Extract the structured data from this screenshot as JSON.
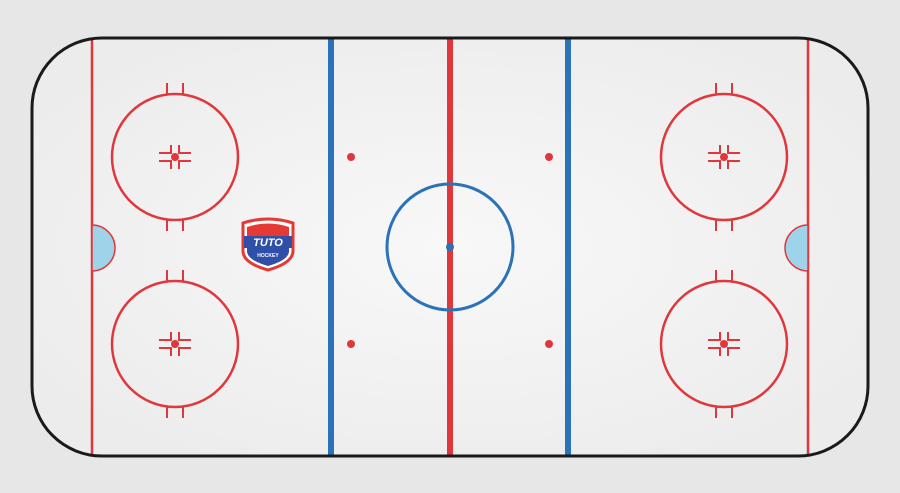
{
  "logo": {
    "name": "TUTO",
    "subtitle": "HOCKEY"
  },
  "colors": {
    "background": "#e7e7e7",
    "ice": "#f1f1f1",
    "boards": "#1a1a1a",
    "red_line": "#e0373c",
    "blue_line": "#2a73b8",
    "crease_fill": "#9fd3ea",
    "logo_red": "#e53935",
    "logo_blue": "#2f4fa8"
  }
}
